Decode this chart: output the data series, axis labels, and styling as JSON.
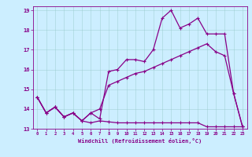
{
  "xlabel": "Windchill (Refroidissement éolien,°C)",
  "background_color": "#cceeff",
  "line_color": "#880088",
  "xlim": [
    -0.5,
    23.5
  ],
  "ylim": [
    13,
    19.2
  ],
  "yticks": [
    13,
    14,
    15,
    16,
    17,
    18,
    19
  ],
  "xticks": [
    0,
    1,
    2,
    3,
    4,
    5,
    6,
    7,
    8,
    9,
    10,
    11,
    12,
    13,
    14,
    15,
    16,
    17,
    18,
    19,
    20,
    21,
    22,
    23
  ],
  "series1_x": [
    0,
    1,
    2,
    3,
    4,
    5,
    6,
    7,
    8,
    9,
    10,
    11,
    12,
    13,
    14,
    15,
    16,
    17,
    18,
    19,
    20,
    21,
    22,
    23
  ],
  "series1_y": [
    14.6,
    13.8,
    14.1,
    13.6,
    13.8,
    13.4,
    13.3,
    13.4,
    13.35,
    13.3,
    13.3,
    13.3,
    13.3,
    13.3,
    13.3,
    13.3,
    13.3,
    13.3,
    13.3,
    13.1,
    13.1,
    13.1,
    13.1,
    13.1
  ],
  "series2_x": [
    0,
    1,
    2,
    3,
    4,
    5,
    6,
    7,
    8,
    9,
    10,
    11,
    12,
    13,
    14,
    15,
    16,
    17,
    18,
    19,
    20,
    21,
    22,
    23
  ],
  "series2_y": [
    14.6,
    13.8,
    14.1,
    13.6,
    13.8,
    13.4,
    13.8,
    13.5,
    15.9,
    16.0,
    16.5,
    16.5,
    16.4,
    17.0,
    18.6,
    19.0,
    18.1,
    18.3,
    18.6,
    17.8,
    17.8,
    17.8,
    14.8,
    13.1
  ],
  "series3_x": [
    0,
    1,
    2,
    3,
    4,
    5,
    6,
    7,
    8,
    9,
    10,
    11,
    12,
    13,
    14,
    15,
    16,
    17,
    18,
    19,
    20,
    21,
    22,
    23
  ],
  "series3_y": [
    14.6,
    13.8,
    14.1,
    13.6,
    13.8,
    13.4,
    13.8,
    14.0,
    15.2,
    15.4,
    15.6,
    15.8,
    15.9,
    16.1,
    16.3,
    16.5,
    16.7,
    16.9,
    17.1,
    17.3,
    16.9,
    16.7,
    14.8,
    13.1
  ]
}
